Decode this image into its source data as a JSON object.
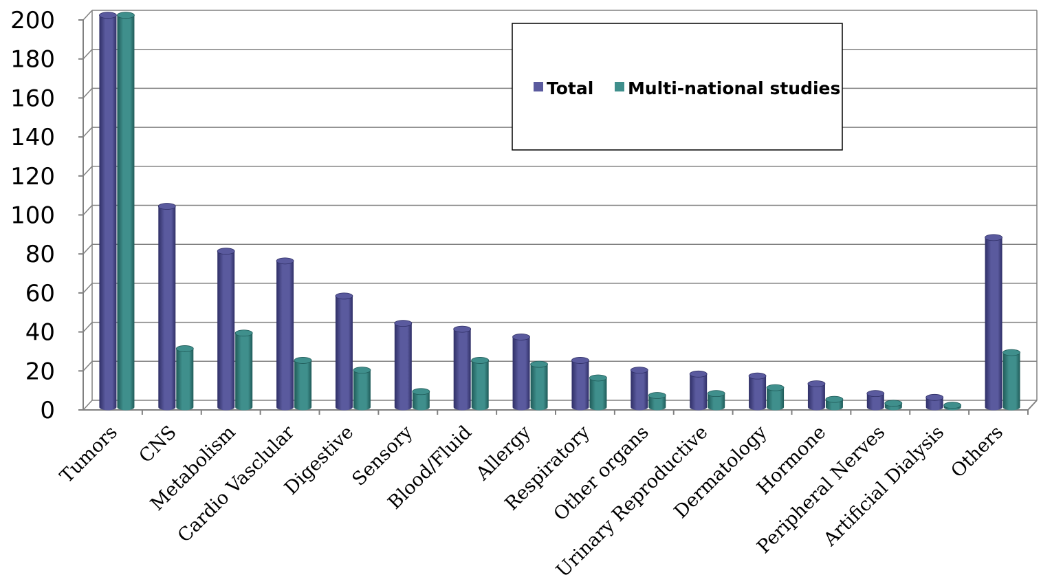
{
  "chart_data": {
    "type": "bar",
    "categories": [
      "Tumors",
      "CNS",
      "Metabolism",
      "Cardio Vasclular",
      "Digestive",
      "Sensory",
      "Blood/Fluid",
      "Allergy",
      "Respiratory",
      "Other organs",
      "Urinary Reproductive",
      "Dermatology",
      "Hormone",
      "Peripheral Nerves",
      "Artificial Dialysis",
      "Others"
    ],
    "series": [
      {
        "name": "Total",
        "values": [
          201,
          103,
          80,
          75,
          57,
          43,
          40,
          36,
          24,
          19,
          17,
          16,
          12,
          7,
          5,
          87
        ]
      },
      {
        "name": "Multi-national studies",
        "values": [
          201,
          30,
          38,
          24,
          19,
          8,
          24,
          22,
          15,
          6,
          7,
          10,
          4,
          2,
          1,
          28
        ]
      }
    ],
    "yticks": [
      "0",
      "20",
      "40",
      "60",
      "80",
      "100",
      "120",
      "140",
      "160",
      "180",
      "200"
    ],
    "ylim": [
      0,
      200
    ],
    "grid": true,
    "legend_position": "top-right",
    "colors": {
      "Total": "#5a5a9e",
      "Total_dark": "#2f2f66",
      "Multi-national studies": "#3f8f8c",
      "Multi-national studies_dark": "#1f5a58",
      "grid": "#808080",
      "axis": "#808080"
    }
  }
}
